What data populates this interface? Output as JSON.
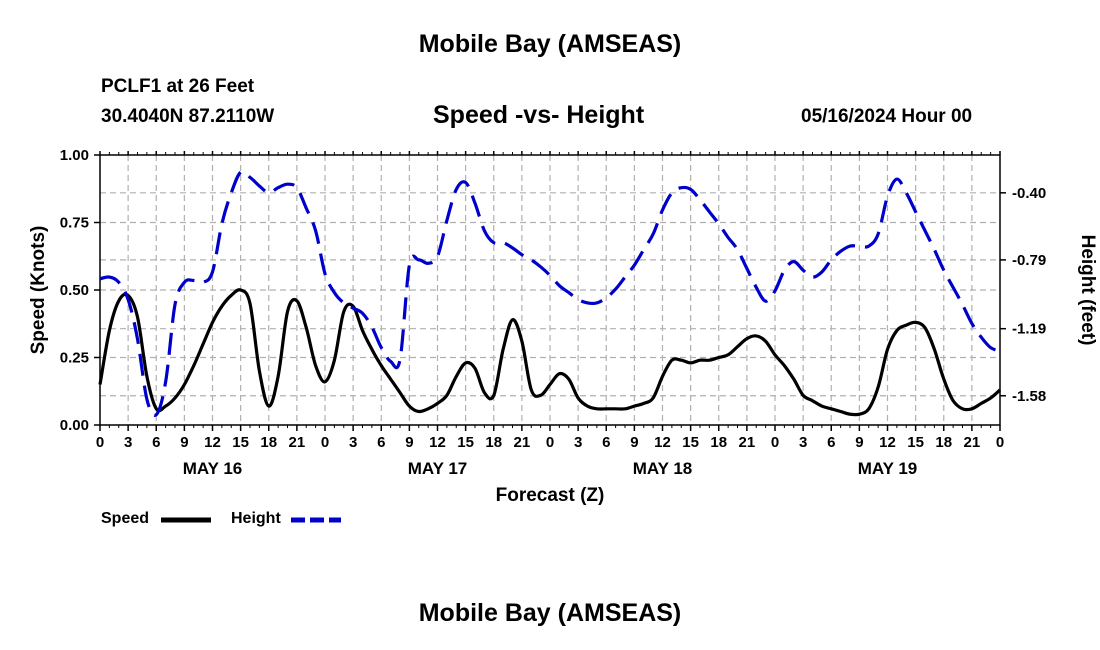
{
  "header": {
    "title": "Mobile Bay (AMSEAS)",
    "station": "PCLF1 at 26 Feet",
    "coords": "30.4040N  87.2110W",
    "date": "05/16/2024 Hour 00",
    "bottom_title": "Mobile Bay (AMSEAS)"
  },
  "chart_data": {
    "type": "line",
    "title": "Speed -vs- Height",
    "xlabel": "Forecast (Z)",
    "ylabel": "Speed (Knots)",
    "y2label": "Height (feet)",
    "xlim": [
      0,
      96
    ],
    "ylim": [
      0,
      1.0
    ],
    "y2lim": [
      -1.75,
      -0.18
    ],
    "x_tick_labels": [
      "0",
      "3",
      "6",
      "9",
      "12",
      "15",
      "18",
      "21",
      "0",
      "3",
      "6",
      "9",
      "12",
      "15",
      "18",
      "21",
      "0",
      "3",
      "6",
      "9",
      "12",
      "15",
      "18",
      "21",
      "0",
      "3",
      "6",
      "9",
      "12",
      "15",
      "18",
      "21",
      "0"
    ],
    "y_ticks": [
      "0.00",
      "0.25",
      "0.50",
      "0.75",
      "1.00"
    ],
    "y2_ticks": [
      "-0.40",
      "-0.79",
      "-1.19",
      "-1.58"
    ],
    "y2_tick_values": [
      -0.4,
      -0.79,
      -1.19,
      -1.58
    ],
    "day_labels": [
      {
        "label": "MAY 16",
        "x": 12
      },
      {
        "label": "MAY 17",
        "x": 36
      },
      {
        "label": "MAY 18",
        "x": 60
      },
      {
        "label": "MAY 19",
        "x": 84
      }
    ],
    "grid": true,
    "legend": [
      "Speed",
      "Height"
    ],
    "series": [
      {
        "name": "Speed",
        "color": "#000000",
        "axis": "left",
        "x": [
          0,
          1,
          2,
          3,
          4,
          5,
          6,
          7,
          8,
          9,
          10,
          11,
          12,
          13,
          14,
          15,
          16,
          17,
          18,
          19,
          20,
          21,
          22,
          23,
          24,
          25,
          26,
          27,
          28,
          29,
          30,
          31,
          32,
          33,
          34,
          35,
          36,
          37,
          38,
          39,
          40,
          41,
          42,
          43,
          44,
          45,
          46,
          47,
          48,
          49,
          50,
          51,
          52,
          53,
          54,
          55,
          56,
          57,
          58,
          59,
          60,
          61,
          62,
          63,
          64,
          65,
          66,
          67,
          68,
          69,
          70,
          71,
          72,
          73,
          74,
          75,
          76,
          77,
          78,
          79,
          80,
          81,
          82,
          83,
          84,
          85,
          86,
          87,
          88,
          89,
          90,
          91,
          92,
          93,
          94,
          95,
          96
        ],
        "values": [
          0.15,
          0.35,
          0.46,
          0.48,
          0.4,
          0.18,
          0.06,
          0.07,
          0.1,
          0.15,
          0.22,
          0.3,
          0.38,
          0.44,
          0.48,
          0.5,
          0.45,
          0.2,
          0.07,
          0.18,
          0.42,
          0.46,
          0.36,
          0.22,
          0.16,
          0.24,
          0.42,
          0.44,
          0.35,
          0.28,
          0.22,
          0.17,
          0.12,
          0.07,
          0.05,
          0.06,
          0.08,
          0.11,
          0.18,
          0.23,
          0.21,
          0.12,
          0.11,
          0.28,
          0.39,
          0.31,
          0.13,
          0.11,
          0.15,
          0.19,
          0.17,
          0.1,
          0.07,
          0.06,
          0.06,
          0.06,
          0.06,
          0.07,
          0.08,
          0.1,
          0.18,
          0.24,
          0.24,
          0.23,
          0.24,
          0.24,
          0.25,
          0.26,
          0.29,
          0.32,
          0.33,
          0.31,
          0.26,
          0.22,
          0.17,
          0.11,
          0.09,
          0.07,
          0.06,
          0.05,
          0.04,
          0.04,
          0.06,
          0.14,
          0.28,
          0.35,
          0.37,
          0.38,
          0.36,
          0.28,
          0.17,
          0.09,
          0.06,
          0.06,
          0.08,
          0.1,
          0.13
        ]
      },
      {
        "name": "Height",
        "color": "#0000cc",
        "axis": "right",
        "x": [
          0,
          1,
          2,
          3,
          4,
          5,
          6,
          7,
          8,
          9,
          10,
          11,
          12,
          13,
          14,
          15,
          16,
          17,
          18,
          19,
          20,
          21,
          22,
          23,
          24,
          25,
          26,
          27,
          28,
          29,
          30,
          31,
          32,
          33,
          34,
          35,
          36,
          37,
          38,
          39,
          40,
          41,
          42,
          43,
          44,
          45,
          46,
          47,
          48,
          49,
          50,
          51,
          52,
          53,
          54,
          55,
          56,
          57,
          58,
          59,
          60,
          61,
          62,
          63,
          64,
          65,
          66,
          67,
          68,
          69,
          70,
          71,
          72,
          73,
          74,
          75,
          76,
          77,
          78,
          79,
          80,
          81,
          82,
          83,
          84,
          85,
          86,
          87,
          88,
          89,
          90,
          91,
          92,
          93,
          94,
          95,
          96
        ],
        "values": [
          -0.9,
          -0.89,
          -0.92,
          -1.02,
          -1.25,
          -1.6,
          -1.69,
          -1.5,
          -1.05,
          -0.92,
          -0.91,
          -0.92,
          -0.86,
          -0.58,
          -0.4,
          -0.28,
          -0.31,
          -0.36,
          -0.4,
          -0.37,
          -0.35,
          -0.37,
          -0.49,
          -0.62,
          -0.87,
          -0.98,
          -1.04,
          -1.07,
          -1.1,
          -1.18,
          -1.3,
          -1.38,
          -1.37,
          -0.82,
          -0.79,
          -0.81,
          -0.77,
          -0.56,
          -0.38,
          -0.34,
          -0.46,
          -0.62,
          -0.69,
          -0.69,
          -0.72,
          -0.76,
          -0.79,
          -0.83,
          -0.88,
          -0.94,
          -0.98,
          -1.02,
          -1.04,
          -1.04,
          -1.01,
          -0.96,
          -0.89,
          -0.82,
          -0.73,
          -0.64,
          -0.5,
          -0.4,
          -0.37,
          -0.38,
          -0.44,
          -0.51,
          -0.58,
          -0.66,
          -0.73,
          -0.84,
          -0.95,
          -1.03,
          -0.97,
          -0.85,
          -0.8,
          -0.85,
          -0.89,
          -0.86,
          -0.79,
          -0.74,
          -0.71,
          -0.71,
          -0.71,
          -0.64,
          -0.42,
          -0.32,
          -0.4,
          -0.51,
          -0.62,
          -0.73,
          -0.85,
          -0.95,
          -1.05,
          -1.16,
          -1.24,
          -1.3,
          -1.32
        ]
      }
    ]
  }
}
